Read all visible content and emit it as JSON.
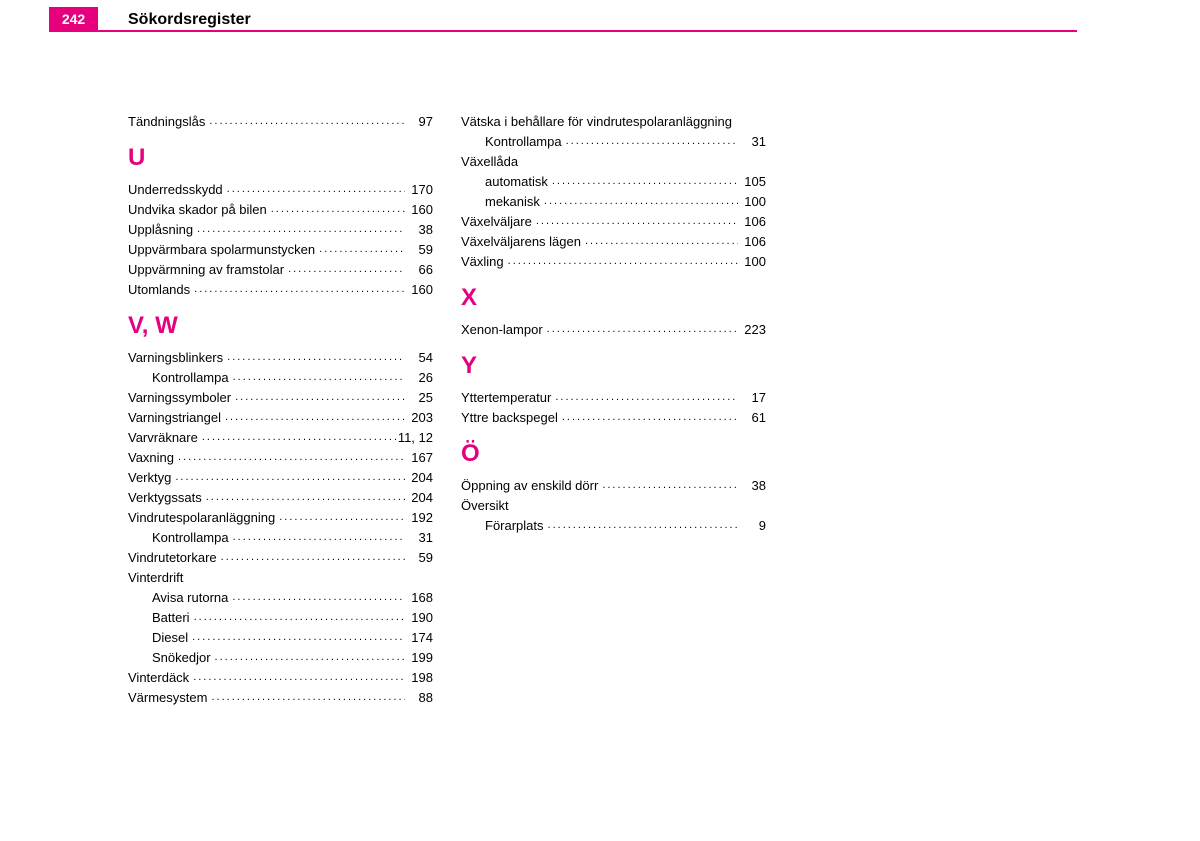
{
  "header": {
    "page_number": "242",
    "title": "Sökordsregister"
  },
  "colors": {
    "accent": "#e6007e",
    "text": "#000000",
    "background": "#ffffff"
  },
  "columns": [
    {
      "blocks": [
        {
          "type": "entries",
          "entries": [
            {
              "label": "Tändningslås",
              "page": "97"
            }
          ]
        },
        {
          "type": "heading",
          "text": "U"
        },
        {
          "type": "entries",
          "entries": [
            {
              "label": "Underredsskydd",
              "page": "170"
            },
            {
              "label": "Undvika skador på bilen",
              "page": "160"
            },
            {
              "label": "Upplåsning",
              "page": "38"
            },
            {
              "label": "Uppvärmbara spolarmunstycken",
              "page": "59"
            },
            {
              "label": "Uppvärmning av framstolar",
              "page": "66"
            },
            {
              "label": "Utomlands",
              "page": "160"
            }
          ]
        },
        {
          "type": "heading",
          "text": "V, W"
        },
        {
          "type": "entries",
          "entries": [
            {
              "label": "Varningsblinkers",
              "page": "54"
            },
            {
              "label": "Kontrollampa",
              "page": "26",
              "sub": true
            },
            {
              "label": "Varningssymboler",
              "page": "25"
            },
            {
              "label": "Varningstriangel",
              "page": "203"
            },
            {
              "label": "Varvräknare",
              "page": "11, 12"
            },
            {
              "label": "Vaxning",
              "page": "167"
            },
            {
              "label": "Verktyg",
              "page": "204"
            },
            {
              "label": "Verktygssats",
              "page": "204"
            },
            {
              "label": "Vindrutespolaranläggning",
              "page": "192"
            },
            {
              "label": "Kontrollampa",
              "page": "31",
              "sub": true
            },
            {
              "label": "Vindrutetorkare",
              "page": "59"
            },
            {
              "label": "Vinterdrift",
              "nopage": true
            },
            {
              "label": "Avisa rutorna",
              "page": "168",
              "sub": true
            },
            {
              "label": "Batteri",
              "page": "190",
              "sub": true
            },
            {
              "label": "Diesel",
              "page": "174",
              "sub": true
            },
            {
              "label": "Snökedjor",
              "page": "199",
              "sub": true
            },
            {
              "label": "Vinterdäck",
              "page": "198"
            },
            {
              "label": "Värmesystem",
              "page": "88"
            }
          ]
        }
      ]
    },
    {
      "blocks": [
        {
          "type": "entries",
          "entries": [
            {
              "label": "Vätska i behållare för vindrutespolaranläggning",
              "nopage": true
            },
            {
              "label": "Kontrollampa",
              "page": "31",
              "sub": true
            },
            {
              "label": "Växellåda",
              "nopage": true
            },
            {
              "label": "automatisk",
              "page": "105",
              "sub": true
            },
            {
              "label": "mekanisk",
              "page": "100",
              "sub": true
            },
            {
              "label": "Växelväljare",
              "page": "106"
            },
            {
              "label": "Växelväljarens lägen",
              "page": "106"
            },
            {
              "label": "Växling",
              "page": "100"
            }
          ]
        },
        {
          "type": "heading",
          "text": "X"
        },
        {
          "type": "entries",
          "entries": [
            {
              "label": "Xenon-lampor",
              "page": "223"
            }
          ]
        },
        {
          "type": "heading",
          "text": "Y"
        },
        {
          "type": "entries",
          "entries": [
            {
              "label": "Yttertemperatur",
              "page": "17"
            },
            {
              "label": "Yttre backspegel",
              "page": "61"
            }
          ]
        },
        {
          "type": "heading",
          "text": "Ö"
        },
        {
          "type": "entries",
          "entries": [
            {
              "label": "Öppning av enskild dörr",
              "page": "38"
            },
            {
              "label": "Översikt",
              "nopage": true
            },
            {
              "label": "Förarplats",
              "page": "9",
              "sub": true
            }
          ]
        }
      ]
    }
  ]
}
